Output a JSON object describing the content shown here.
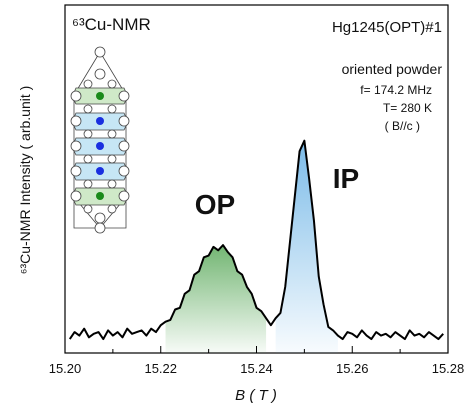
{
  "chart_data": {
    "type": "line",
    "title": "⁶³Cu-NMR",
    "x_label": "B ( T )",
    "y_label": "⁶³Cu-NMR Intensity ( arb.unit )",
    "annotations": [
      "Hg1245(OPT)#1",
      "oriented powder",
      "f= 174.2 MHz",
      "T= 280 K",
      "( B//c )"
    ],
    "peaks": [
      {
        "label": "OP",
        "color": "#2a8a2a",
        "fill": "#62ad62"
      },
      {
        "label": "IP",
        "color": "#1f2fe0",
        "fill": "#6db4e6"
      }
    ],
    "xlim": [
      15.2,
      15.28
    ],
    "xticks": [
      {
        "value": 15.2,
        "label": "15.20"
      },
      15.22,
      15.24,
      15.26,
      15.28
    ],
    "ylim": [
      0,
      1
    ],
    "color": "#000000",
    "x": [
      15.201,
      15.202,
      15.203,
      15.204,
      15.205,
      15.206,
      15.207,
      15.208,
      15.209,
      15.21,
      15.211,
      15.212,
      15.213,
      15.214,
      15.215,
      15.216,
      15.217,
      15.218,
      15.219,
      15.22,
      15.221,
      15.222,
      15.223,
      15.224,
      15.225,
      15.226,
      15.227,
      15.228,
      15.229,
      15.23,
      15.231,
      15.232,
      15.233,
      15.234,
      15.235,
      15.236,
      15.237,
      15.238,
      15.239,
      15.24,
      15.241,
      15.242,
      15.243,
      15.244,
      15.245,
      15.246,
      15.247,
      15.248,
      15.249,
      15.25,
      15.251,
      15.252,
      15.253,
      15.254,
      15.255,
      15.256,
      15.257,
      15.258,
      15.259,
      15.26,
      15.261,
      15.262,
      15.263,
      15.264,
      15.265,
      15.266,
      15.267,
      15.268,
      15.269,
      15.27,
      15.271,
      15.272,
      15.273,
      15.274,
      15.275,
      15.276,
      15.277,
      15.278,
      15.279
    ],
    "values": [
      0.04,
      0.06,
      0.05,
      0.07,
      0.045,
      0.055,
      0.06,
      0.04,
      0.065,
      0.05,
      0.06,
      0.045,
      0.07,
      0.055,
      0.06,
      0.065,
      0.05,
      0.07,
      0.06,
      0.08,
      0.09,
      0.095,
      0.125,
      0.13,
      0.17,
      0.18,
      0.225,
      0.235,
      0.275,
      0.28,
      0.305,
      0.295,
      0.31,
      0.29,
      0.275,
      0.235,
      0.225,
      0.19,
      0.17,
      0.13,
      0.12,
      0.1,
      0.08,
      0.1,
      0.115,
      0.19,
      0.32,
      0.45,
      0.58,
      0.61,
      0.5,
      0.38,
      0.22,
      0.14,
      0.075,
      0.065,
      0.05,
      0.04,
      0.06,
      0.055,
      0.045,
      0.065,
      0.05,
      0.04,
      0.06,
      0.05,
      0.055,
      0.045,
      0.06,
      0.05,
      0.04,
      0.065,
      0.05,
      0.055,
      0.045,
      0.06,
      0.05,
      0.04,
      0.055
    ]
  }
}
